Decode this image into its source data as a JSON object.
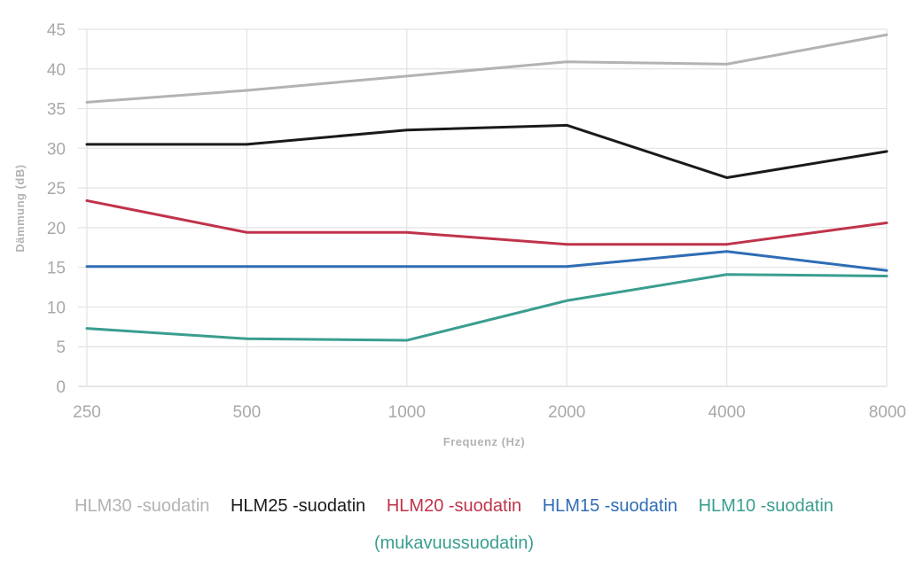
{
  "chart_data": {
    "type": "line",
    "xlabel": "Frequenz (Hz)",
    "ylabel": "Dämmung (dB)",
    "categories": [
      "250",
      "500",
      "1000",
      "2000",
      "4000",
      "8000"
    ],
    "ylim": [
      0,
      45
    ],
    "yticks": [
      0,
      5,
      10,
      15,
      20,
      25,
      30,
      35,
      40,
      45
    ],
    "grid": true,
    "legend_position": "bottom",
    "series": [
      {
        "name": "HLM30 -suodatin",
        "color": "#b3b3b3",
        "values": [
          35.8,
          37.3,
          39.1,
          40.9,
          40.6,
          44.3
        ]
      },
      {
        "name": "HLM25 -suodatin",
        "color": "#1a1a1a",
        "values": [
          30.5,
          30.5,
          32.3,
          32.9,
          26.3,
          29.6
        ]
      },
      {
        "name": "HLM20 -suodatin",
        "color": "#c0334a",
        "values": [
          23.4,
          19.4,
          19.4,
          17.9,
          17.9,
          20.6
        ]
      },
      {
        "name": "HLM15 -suodatin",
        "color": "#2f6db5",
        "values": [
          15.1,
          15.1,
          15.1,
          15.1,
          17.0,
          14.6
        ]
      },
      {
        "name": "HLM10 -suodatin (mukavuussuodatin)",
        "color": "#3a9e8f",
        "values": [
          7.3,
          6.0,
          5.8,
          10.8,
          14.1,
          13.9
        ]
      }
    ]
  },
  "legend": {
    "items": [
      {
        "label": "HLM30 -suodatin",
        "color": "#b3b3b3"
      },
      {
        "label": "HLM25 -suodatin",
        "color": "#1a1a1a"
      },
      {
        "label": "HLM20 -suodatin",
        "color": "#c0334a"
      },
      {
        "label": "HLM15 -suodatin",
        "color": "#2f6db5"
      },
      {
        "label": "HLM10 -suodatin",
        "color": "#3a9e8f"
      }
    ],
    "extra_line": {
      "label": "(mukavuussuodatin)",
      "color": "#3a9e8f"
    }
  }
}
